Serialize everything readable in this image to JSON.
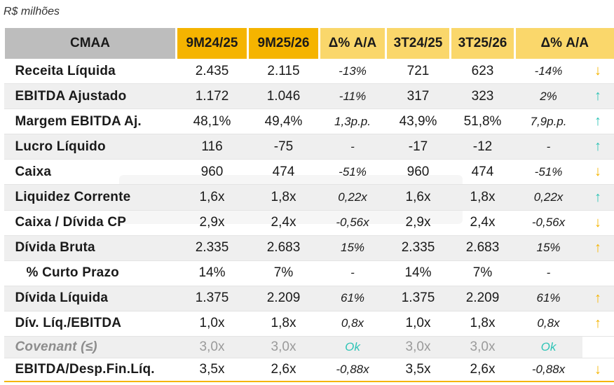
{
  "unit_label": "R$ milhões",
  "header": {
    "label": "CMAA",
    "cols": [
      "9M24/25",
      "9M25/26",
      "Δ% A/A",
      "3T24/25",
      "3T25/26",
      "Δ% A/A"
    ]
  },
  "colors": {
    "gold": "#f5b400",
    "light_gold": "#fad76b",
    "teal": "#2ec4b6",
    "gray": "#bdbdbd"
  },
  "rows": [
    {
      "name": "Receita Líquida",
      "v": [
        "2.435",
        "2.115",
        "-13%",
        "721",
        "623",
        "-14%"
      ],
      "arrow": "↓"
    },
    {
      "name": "EBITDA Ajustado",
      "v": [
        "1.172",
        "1.046",
        "-11%",
        "317",
        "323",
        "2%"
      ],
      "arrow": "↑"
    },
    {
      "name": "Margem EBITDA Aj.",
      "v": [
        "48,1%",
        "49,4%",
        "1,3p.p.",
        "43,9%",
        "51,8%",
        "7,9p.p."
      ],
      "arrow": "↑"
    },
    {
      "name": "Lucro Líquido",
      "v": [
        "116",
        "-75",
        "-",
        "-17",
        "-12",
        "-"
      ],
      "arrow": "↑"
    },
    {
      "name": "Caixa",
      "v": [
        "960",
        "474",
        "-51%",
        "960",
        "474",
        "-51%"
      ],
      "arrow": "↓"
    },
    {
      "name": "Liquidez Corrente",
      "v": [
        "1,6x",
        "1,8x",
        "0,22x",
        "1,6x",
        "1,8x",
        "0,22x"
      ],
      "arrow": "↑"
    },
    {
      "name": "Caixa / Dívida CP",
      "v": [
        "2,9x",
        "2,4x",
        "-0,56x",
        "2,9x",
        "2,4x",
        "-0,56x"
      ],
      "arrow": "↓"
    },
    {
      "name": "Dívida Bruta",
      "v": [
        "2.335",
        "2.683",
        "15%",
        "2.335",
        "2.683",
        "15%"
      ],
      "arrow": "↑"
    },
    {
      "name": "% Curto Prazo",
      "v": [
        "14%",
        "7%",
        "-",
        "14%",
        "7%",
        "-"
      ],
      "arrow": ""
    },
    {
      "name": "Dívida Líquida",
      "v": [
        "1.375",
        "2.209",
        "61%",
        "1.375",
        "2.209",
        "61%"
      ],
      "arrow": "↑"
    },
    {
      "name": "Dív. Líq./EBITDA",
      "v": [
        "1,0x",
        "1,8x",
        "0,8x",
        "1,0x",
        "1,8x",
        "0,8x"
      ],
      "arrow": "↑"
    },
    {
      "name": "Covenant (≤)",
      "v": [
        "3,0x",
        "3,0x",
        "Ok",
        "3,0x",
        "3,0x",
        "Ok"
      ],
      "arrow": ""
    },
    {
      "name": "EBITDA/Desp.Fin.Líq.",
      "v": [
        "3,5x",
        "2,6x",
        "-0,88x",
        "3,5x",
        "2,6x",
        "-0,88x"
      ],
      "arrow": "↓"
    }
  ]
}
